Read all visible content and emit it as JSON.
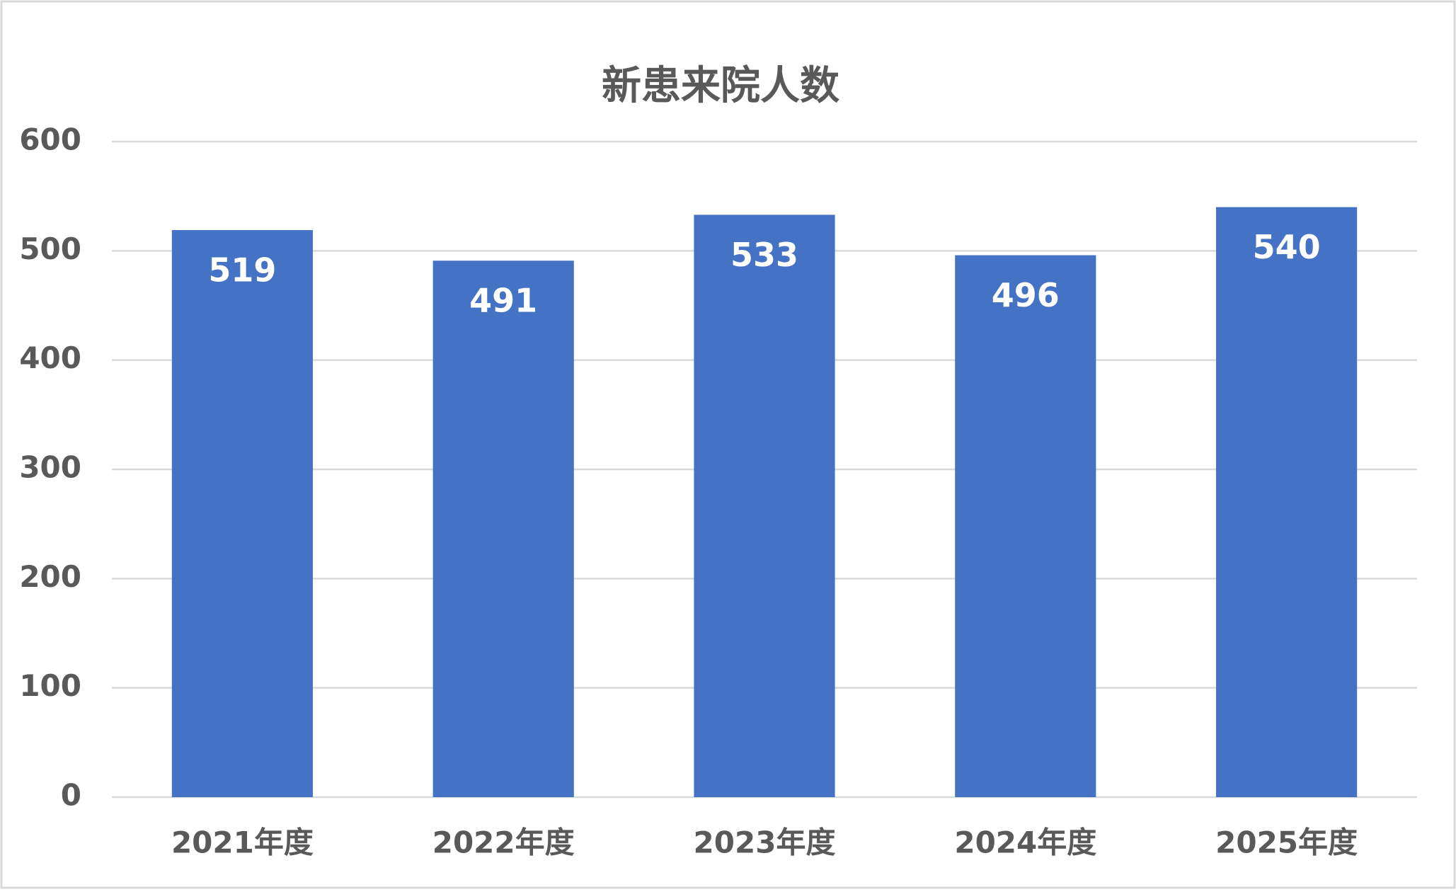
{
  "chart_data": {
    "type": "bar",
    "title": "新患来院人数",
    "categories": [
      "2021年度",
      "2022年度",
      "2023年度",
      "2024年度",
      "2025年度"
    ],
    "values": [
      519,
      491,
      533,
      496,
      540
    ],
    "color": "#4472c4",
    "ylim": [
      0,
      600
    ],
    "yticks": [
      0,
      100,
      200,
      300,
      400,
      500,
      600
    ],
    "grid": true
  }
}
